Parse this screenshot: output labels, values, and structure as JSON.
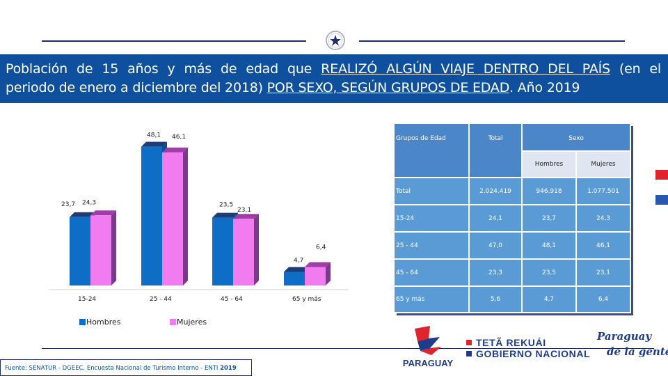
{
  "title": {
    "part1": "Población de 15 años y más de edad que ",
    "part2": "REALIZÓ ALGÚN VIAJE DENTRO DEL PAÍS",
    "part3": " (en el",
    "part4": "periodo de enero a diciembre del 2018) ",
    "part5": "POR SEXO,  SEGÚN GRUPOS DE EDAD",
    "part6": ". Año 2019"
  },
  "colors": {
    "band": "#0e4f9e",
    "hombres": "#0e6dc4",
    "hombres_top": "#1c3d7a",
    "hombres_side": "#0a4f93",
    "mujeres": "#f07cf0",
    "mujeres_top": "#a23ca8",
    "mujeres_side": "#7a3a8c",
    "table": "#5b9bd5"
  },
  "chart_data": {
    "type": "bar",
    "categories": [
      "15-24",
      "25 - 44",
      "45 - 64",
      "65 y más"
    ],
    "series": [
      {
        "name": "Hombres",
        "values": [
          23.7,
          48.1,
          23.5,
          4.7
        ],
        "labels": [
          "23,7",
          "48,1",
          "23,5",
          "4,7"
        ]
      },
      {
        "name": "Mujeres",
        "values": [
          24.3,
          46.1,
          23.1,
          6.4
        ],
        "labels": [
          "24,3",
          "46,1",
          "23,1",
          "6,4"
        ]
      }
    ],
    "ylim": [
      0,
      55
    ],
    "legend": [
      "Hombres",
      "Mujeres"
    ],
    "legend_position": "bottom-left"
  },
  "table": {
    "header": {
      "grupos": "Grupos de Edad",
      "total": "Total",
      "sexo": "Sexo",
      "hombres": "Hombres",
      "mujeres": "Mujeres"
    },
    "rows": [
      {
        "grupo": "Total",
        "total": "2.024.419",
        "hombres": "946.918",
        "mujeres": "1.077.501"
      },
      {
        "grupo": "15-24",
        "total": "24,1",
        "hombres": "23,7",
        "mujeres": "24,3"
      },
      {
        "grupo": "25 - 44",
        "total": "47,0",
        "hombres": "48,1",
        "mujeres": "46,1"
      },
      {
        "grupo": "45 - 64",
        "total": "23,3",
        "hombres": "23,5",
        "mujeres": "23,1"
      },
      {
        "grupo": "65 y más",
        "total": "5,6",
        "hombres": "4,7",
        "mujeres": "6,4"
      }
    ]
  },
  "footer": {
    "fuente": "Fuente: SENATUR - DGEEC, Encuesta Nacional de Turismo Interno - ENTI ",
    "year": "2019"
  },
  "logos": {
    "paraguay": "PARAGUAY",
    "gov_line1": "TETÃ REKUÁI",
    "gov_line2": "GOBIERNO NACIONAL",
    "script1": "Paraguay",
    "script2": "de la gente"
  }
}
